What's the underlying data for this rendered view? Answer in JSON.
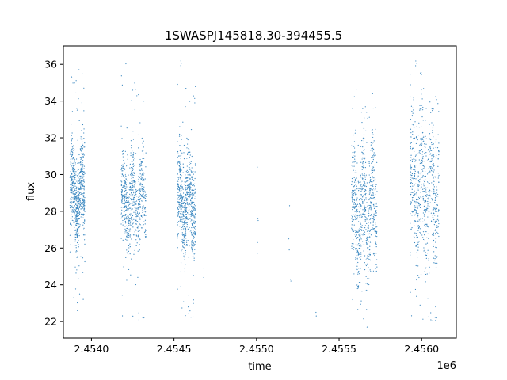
{
  "chart_data": {
    "type": "scatter",
    "title": "1SWASPJ145818.30-394455.5",
    "xlabel": "time",
    "ylabel": "flux",
    "x_offset_label": "1e6",
    "x_tick_labels": [
      "2.4540",
      "2.4545",
      "2.4550",
      "2.4555",
      "2.4560"
    ],
    "x_ticks": [
      2454000,
      2454500,
      2455000,
      2455500,
      2456000
    ],
    "y_tick_labels": [
      "22",
      "24",
      "26",
      "28",
      "30",
      "32",
      "34",
      "36"
    ],
    "y_ticks": [
      22,
      24,
      26,
      28,
      30,
      32,
      34,
      36
    ],
    "xlim": [
      2453830,
      2456210
    ],
    "ylim": [
      21.1,
      37.0
    ],
    "grid": false,
    "marker_color": "#3a87c0",
    "seasons": [
      {
        "x_range": [
          2453870,
          2453960
        ],
        "y_core": [
          26.0,
          31.8
        ],
        "y_extremes": [
          22.3,
          35.9
        ]
      },
      {
        "x_range": [
          2454180,
          2454330
        ],
        "y_core": [
          25.8,
          31.2
        ],
        "y_extremes": [
          21.8,
          36.2
        ]
      },
      {
        "x_range": [
          2454520,
          2454630
        ],
        "y_core": [
          25.6,
          31.4
        ],
        "y_extremes": [
          22.0,
          36.3
        ]
      },
      {
        "x_range": [
          2455575,
          2455730
        ],
        "y_core": [
          24.0,
          32.2
        ],
        "y_extremes": [
          21.7,
          34.8
        ]
      },
      {
        "x_range": [
          2455930,
          2456105
        ],
        "y_core": [
          25.0,
          33.5
        ],
        "y_extremes": [
          21.8,
          36.3
        ]
      }
    ],
    "sparse_points": [
      {
        "x": 2454680,
        "y": 24.4
      },
      {
        "x": 2454681,
        "y": 24.9
      },
      {
        "x": 2455005,
        "y": 30.4
      },
      {
        "x": 2455008,
        "y": 27.6
      },
      {
        "x": 2455010,
        "y": 27.5
      },
      {
        "x": 2455006,
        "y": 26.3
      },
      {
        "x": 2455004,
        "y": 25.7
      },
      {
        "x": 2455200,
        "y": 28.3
      },
      {
        "x": 2455195,
        "y": 26.5
      },
      {
        "x": 2455198,
        "y": 25.9
      },
      {
        "x": 2455205,
        "y": 24.3
      },
      {
        "x": 2455208,
        "y": 24.2
      },
      {
        "x": 2455360,
        "y": 22.5
      },
      {
        "x": 2455362,
        "y": 22.3
      }
    ]
  }
}
